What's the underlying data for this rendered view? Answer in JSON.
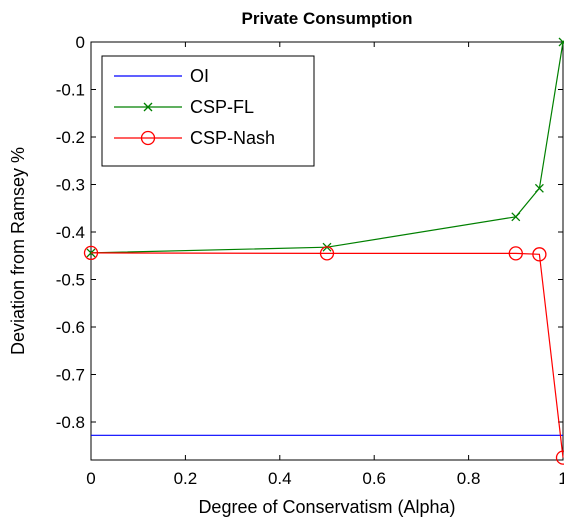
{
  "chart_data": {
    "type": "line",
    "title": "Private Consumption",
    "xlabel": "Degree of Conservatism (Alpha)",
    "ylabel": "Deviation from Ramsey %",
    "xlim": [
      0,
      1
    ],
    "ylim": [
      -0.88,
      0
    ],
    "xticks": [
      0,
      0.2,
      0.4,
      0.6,
      0.8,
      1
    ],
    "xtick_labels": [
      "0",
      "0.2",
      "0.4",
      "0.6",
      "0.8",
      "1"
    ],
    "yticks": [
      0,
      -0.1,
      -0.2,
      -0.3,
      -0.4,
      -0.5,
      -0.6,
      -0.7,
      -0.8
    ],
    "ytick_labels": [
      "0",
      "-0.1",
      "-0.2",
      "-0.3",
      "-0.4",
      "-0.5",
      "-0.6",
      "-0.7",
      "-0.8"
    ],
    "grid": false,
    "legend_position": "top-left",
    "series": [
      {
        "name": "OI",
        "color": "#0000ff",
        "marker": "none",
        "x": [
          0,
          1
        ],
        "y": [
          -0.828,
          -0.828
        ]
      },
      {
        "name": "CSP-FL",
        "color": "#008000",
        "marker": "x",
        "x": [
          0,
          0.5,
          0.9,
          0.95,
          1
        ],
        "y": [
          -0.444,
          -0.432,
          -0.368,
          -0.308,
          0
        ]
      },
      {
        "name": "CSP-Nash",
        "color": "#ff0000",
        "marker": "o",
        "x": [
          0,
          0.5,
          0.9,
          0.95,
          1
        ],
        "y": [
          -0.444,
          -0.445,
          -0.445,
          -0.447,
          -0.875
        ]
      }
    ]
  }
}
